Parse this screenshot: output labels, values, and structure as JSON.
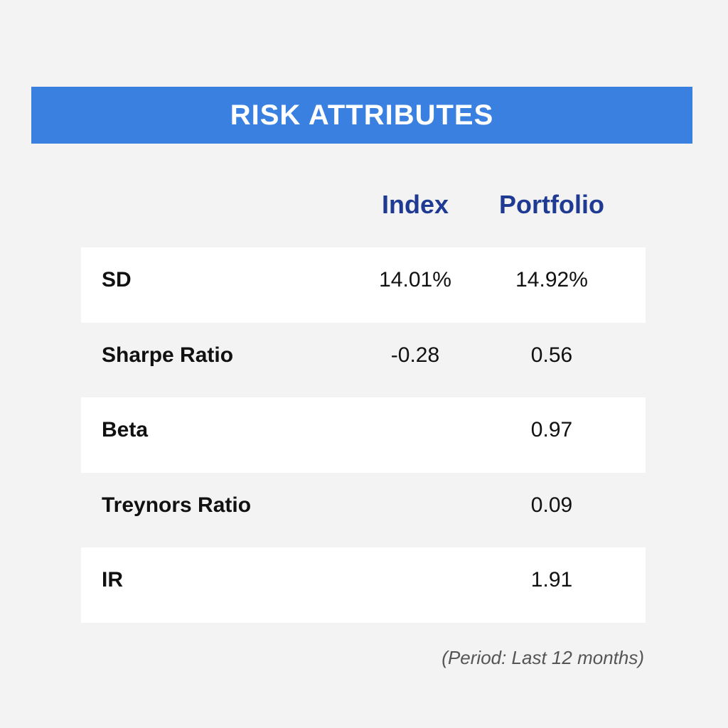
{
  "title": "RISK ATTRIBUTES",
  "columns": {
    "index": "Index",
    "portfolio": "Portfolio"
  },
  "rows": [
    {
      "label": "SD",
      "index": "14.01%",
      "portfolio": "14.92%"
    },
    {
      "label": "Sharpe Ratio",
      "index": "-0.28",
      "portfolio": "0.56"
    },
    {
      "label": "Beta",
      "index": "",
      "portfolio": "0.97"
    },
    {
      "label": "Treynors Ratio",
      "index": "",
      "portfolio": "0.09"
    },
    {
      "label": "IR",
      "index": "",
      "portfolio": "1.91"
    }
  ],
  "footnote": "(Period: Last 12 months)",
  "colors": {
    "banner": "#3a80e0",
    "header_text": "#1f3a93",
    "background": "#f3f3f3",
    "row_shade": "#ffffff"
  }
}
